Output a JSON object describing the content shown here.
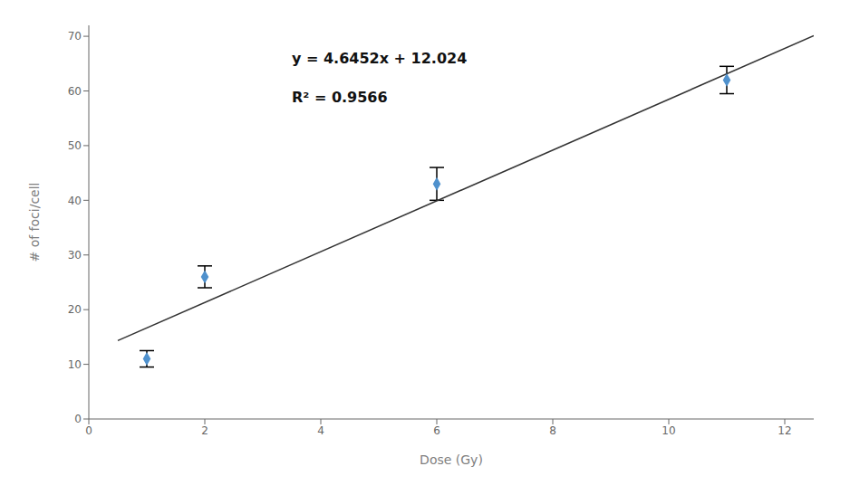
{
  "chart_data": {
    "type": "scatter",
    "xlabel": "Dose (Gy)",
    "ylabel": "# of foci/cell",
    "xlim": [
      0,
      12.5
    ],
    "ylim": [
      0,
      72
    ],
    "xticks": [
      0,
      2,
      4,
      6,
      8,
      10,
      12
    ],
    "yticks": [
      0,
      10,
      20,
      30,
      40,
      50,
      60,
      70
    ],
    "grid": false,
    "series": [
      {
        "type": "scatter",
        "marker": "diamond",
        "color": "#4F91CD",
        "x": [
          1,
          2,
          6,
          11
        ],
        "values": [
          11,
          26,
          43,
          62
        ],
        "y_err": [
          1.5,
          2.0,
          3.0,
          2.5
        ]
      },
      {
        "type": "line",
        "line_style": "solid",
        "color": "#333333",
        "x": [
          0.5,
          12.5
        ],
        "values": [
          14.3466,
          70.089
        ]
      }
    ],
    "annotations": [
      {
        "text": "y = 4.6452x + 12.024",
        "x": 3.5,
        "y": 65
      },
      {
        "text": "R² = 0.9566",
        "x": 3.5,
        "y": 58
      }
    ]
  }
}
